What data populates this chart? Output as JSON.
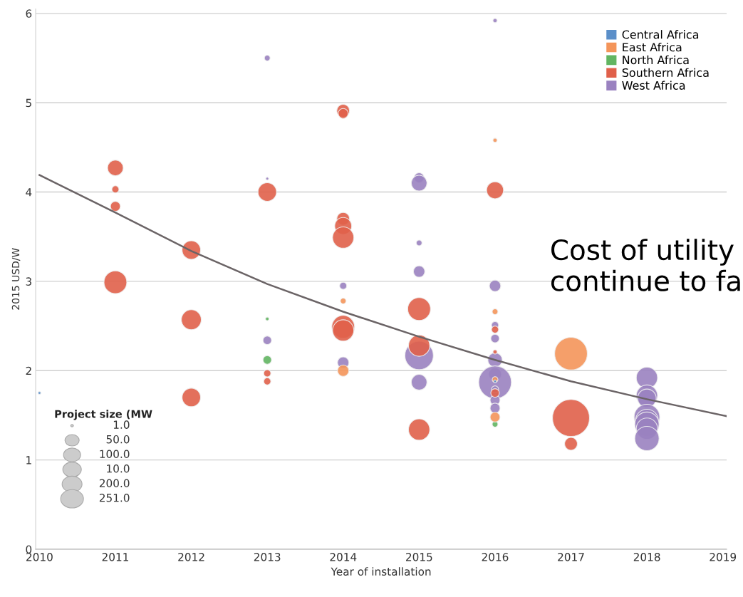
{
  "chart_data": {
    "type": "bubble",
    "xlabel": "Year of installation",
    "ylabel": "2015 USD/W",
    "xlim": [
      2009.95,
      2019.05
    ],
    "xticks": [
      2010,
      2011,
      2012,
      2013,
      2014,
      2015,
      2016,
      2017,
      2018,
      2019
    ],
    "ylim": [
      0,
      6.05
    ],
    "yticks": [
      0,
      1,
      2,
      3,
      4,
      5,
      6
    ],
    "grid": "y",
    "legend": "top right",
    "annotations": [
      "Cost of utility\ncontinue to fa",
      "Project size (MW",
      "1.0",
      "50.0",
      "100.0",
      "10.0",
      "200.0",
      "251.0"
    ],
    "series": [
      {
        "name": "Central Africa",
        "color": "#5b8fc9",
        "x": [
          2010,
          2016
        ],
        "values": [
          1.75,
          1.88
        ],
        "sizes": [
          0.006,
          0.006
        ]
      },
      {
        "name": "East Africa",
        "color": "#f4955a",
        "x": [
          2014,
          2014,
          2016,
          2016,
          2016,
          2016,
          2017
        ],
        "values": [
          2.78,
          2.0,
          4.58,
          2.66,
          1.9,
          1.48,
          2.19
        ],
        "sizes": [
          0.024,
          0.095,
          0.013,
          0.024,
          0.024,
          0.072,
          0.78
        ]
      },
      {
        "name": "North Africa",
        "color": "#62b562",
        "x": [
          2013,
          2013,
          2016
        ],
        "values": [
          2.58,
          2.12,
          1.4
        ],
        "sizes": [
          0.009,
          0.053,
          0.024
        ]
      },
      {
        "name": "Southern Africa",
        "color": "#e0604a",
        "x": [
          2011,
          2011,
          2011,
          2011,
          2012,
          2012,
          2012,
          2013,
          2013,
          2013,
          2014,
          2014,
          2014,
          2014,
          2014,
          2014,
          2014,
          2015,
          2015,
          2015,
          2016,
          2016,
          2016,
          2016,
          2017,
          2017
        ],
        "values": [
          4.27,
          4.03,
          3.84,
          2.99,
          3.35,
          2.57,
          1.7,
          4.0,
          1.97,
          1.88,
          4.91,
          4.88,
          3.7,
          3.62,
          3.49,
          2.49,
          2.45,
          2.69,
          2.28,
          1.34,
          4.02,
          2.46,
          2.21,
          1.75,
          1.47,
          1.18
        ],
        "sizes": [
          0.18,
          0.037,
          0.072,
          0.38,
          0.25,
          0.29,
          0.25,
          0.25,
          0.037,
          0.037,
          0.12,
          0.072,
          0.12,
          0.21,
          0.33,
          0.38,
          0.33,
          0.38,
          0.33,
          0.33,
          0.21,
          0.037,
          0.013,
          0.053,
          1,
          0.12
        ]
      },
      {
        "name": "West Africa",
        "color": "#9a82c0",
        "x": [
          2013,
          2013,
          2013,
          2014,
          2014,
          2015,
          2015,
          2015,
          2015,
          2015,
          2015,
          2016,
          2016,
          2016,
          2016,
          2016,
          2016,
          2016,
          2016,
          2016,
          2016,
          2018,
          2018,
          2018,
          2018,
          2018,
          2018,
          2018,
          2018
        ],
        "values": [
          5.5,
          4.15,
          2.34,
          2.95,
          2.09,
          4.16,
          4.1,
          3.43,
          3.11,
          2.17,
          1.87,
          5.92,
          2.95,
          2.51,
          2.36,
          2.12,
          1.96,
          1.87,
          1.79,
          1.67,
          1.58,
          1.92,
          1.72,
          1.69,
          1.48,
          1.44,
          1.4,
          1.35,
          1.24
        ],
        "sizes": [
          0.024,
          0.006,
          0.053,
          0.037,
          0.095,
          0.072,
          0.18,
          0.024,
          0.095,
          0.59,
          0.18,
          0.013,
          0.095,
          0.037,
          0.053,
          0.15,
          0.12,
          0.78,
          0.037,
          0.072,
          0.072,
          0.33,
          0.33,
          0.25,
          0.48,
          0.38,
          0.43,
          0.33,
          0.43
        ]
      },
      {
        "type": "line",
        "color": "#6b6466",
        "x": [
          2010,
          2011,
          2012,
          2013,
          2014,
          2015,
          2016,
          2017,
          2018,
          2019.05
        ],
        "values": [
          4.19,
          3.77,
          3.34,
          2.97,
          2.66,
          2.38,
          2.12,
          1.88,
          1.68,
          1.49
        ]
      }
    ]
  }
}
